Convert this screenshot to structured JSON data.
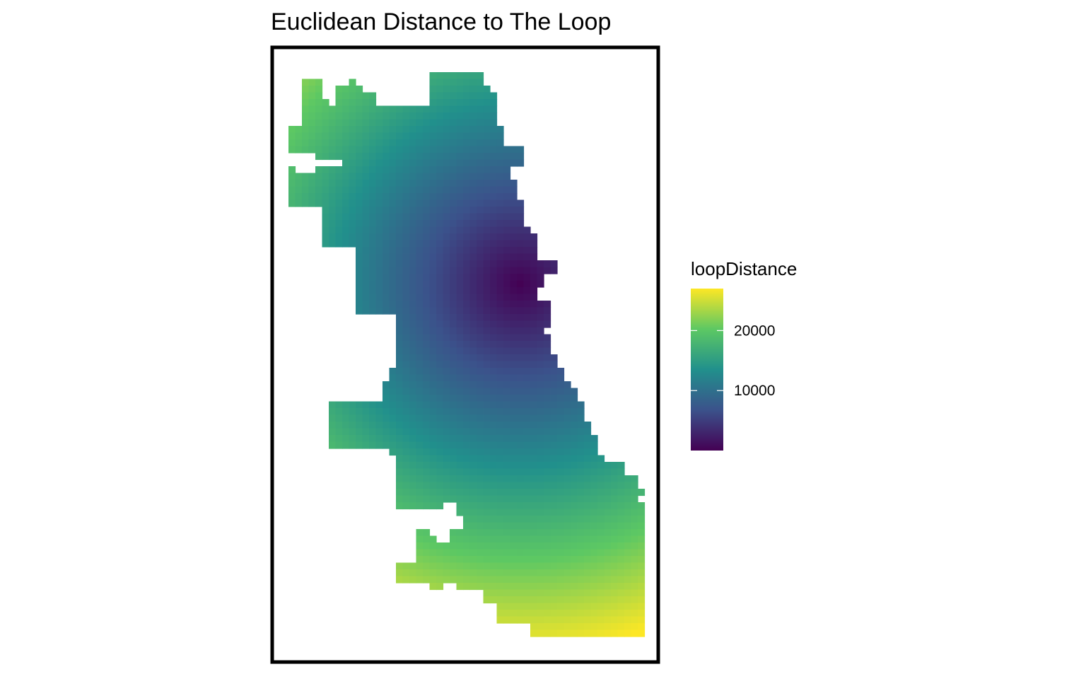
{
  "chart_data": {
    "type": "heatmap",
    "title": "Euclidean Distance to The Loop",
    "subtitle": "",
    "xlabel": "",
    "ylabel": "",
    "grid": false,
    "legend": {
      "title": "loopDistance",
      "position": "right",
      "ticks": [
        {
          "value": 10000,
          "label": "10000"
        },
        {
          "value": 20000,
          "label": "20000"
        }
      ],
      "range": [
        0,
        27000
      ]
    },
    "colormap": [
      "#440154",
      "#3b528b",
      "#21908c",
      "#5dc863",
      "#fde725"
    ],
    "values_at_reference_points": [
      {
        "location": "The Loop (minimum)",
        "loopDistance": 0
      },
      {
        "location": "far north tip",
        "loopDistance": 24000
      },
      {
        "location": "northwest corner",
        "loopDistance": 22000
      },
      {
        "location": "southwest lobe",
        "loopDistance": 19000
      },
      {
        "location": "far south-east corner",
        "loopDistance": 27000
      }
    ]
  }
}
